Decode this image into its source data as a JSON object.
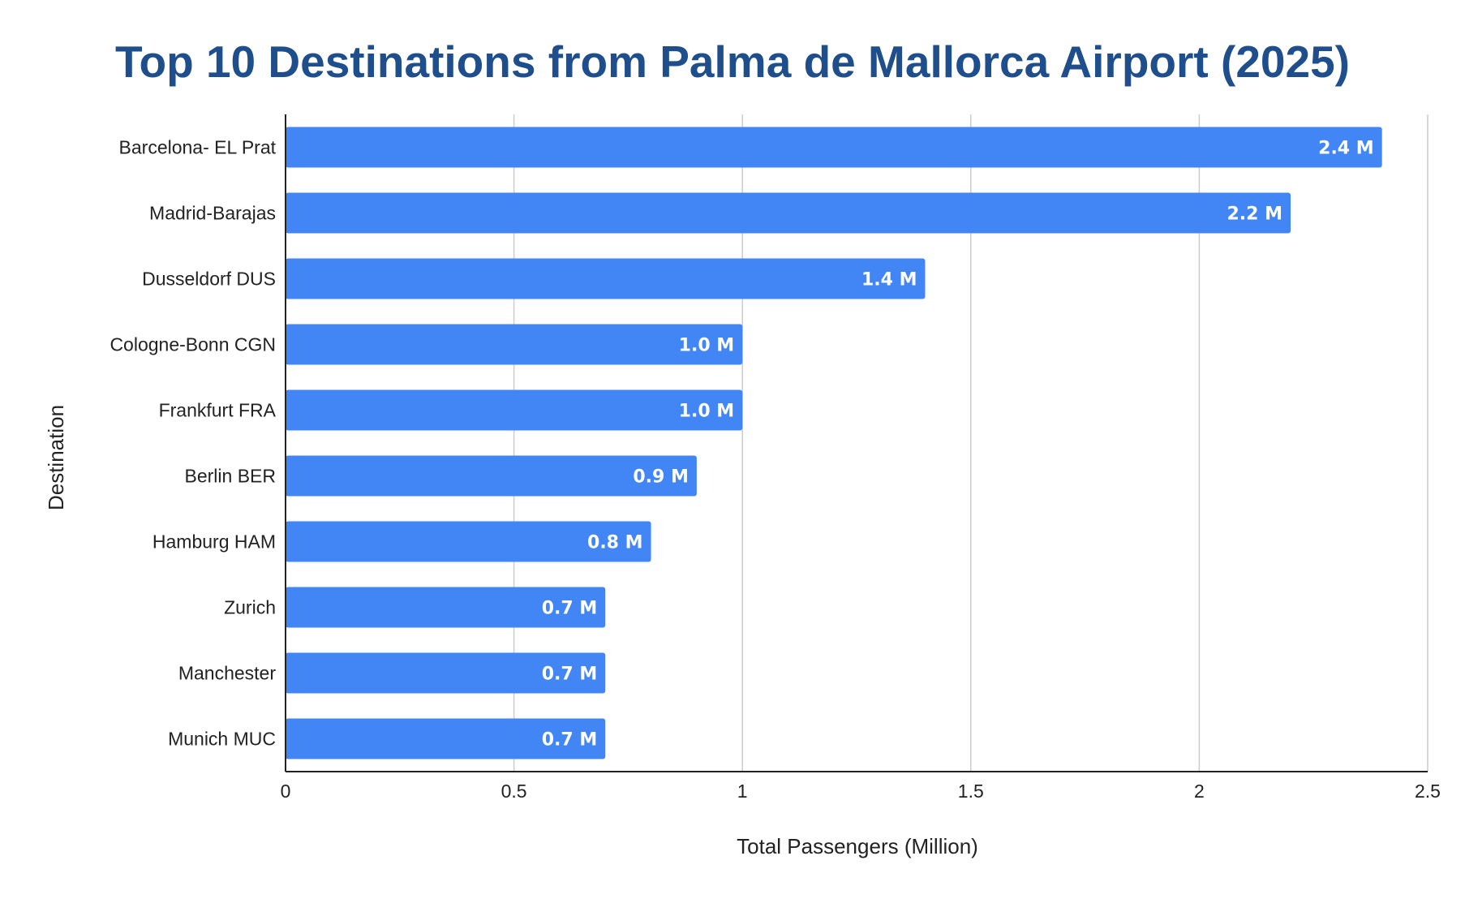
{
  "colors": {
    "bar": "#4285f4",
    "title": "#1f4e8c",
    "grid": "#cccccc",
    "axis": "#222222",
    "data_label": "#ffffff"
  },
  "chart_data": {
    "type": "bar",
    "orientation": "horizontal",
    "title": "Top 10 Destinations from Palma de Mallorca Airport (2025)",
    "xlabel": "Total Passengers (Million)",
    "ylabel": "Destination",
    "categories": [
      "Barcelona- EL Prat",
      "Madrid-Barajas",
      "Dusseldorf DUS",
      "Cologne-Bonn CGN",
      "Frankfurt FRA",
      "Berlin BER",
      "Hamburg HAM",
      "Zurich",
      "Manchester",
      "Munich MUC"
    ],
    "values": [
      2.4,
      2.2,
      1.4,
      1.0,
      1.0,
      0.9,
      0.8,
      0.7,
      0.7,
      0.7
    ],
    "data_labels": [
      "2.4 M",
      "2.2 M",
      "1.4 M",
      "1.0 M",
      "1.0 M",
      "0.9 M",
      "0.8 M",
      "0.7 M",
      "0.7 M",
      "0.7 M"
    ],
    "xlim": [
      0,
      2.5
    ],
    "xticks": [
      0,
      0.5,
      1,
      1.5,
      2,
      2.5
    ],
    "xtick_labels": [
      "0",
      "0.5",
      "1",
      "1.5",
      "2",
      "2.5"
    ],
    "grid": true,
    "legend": "none"
  }
}
